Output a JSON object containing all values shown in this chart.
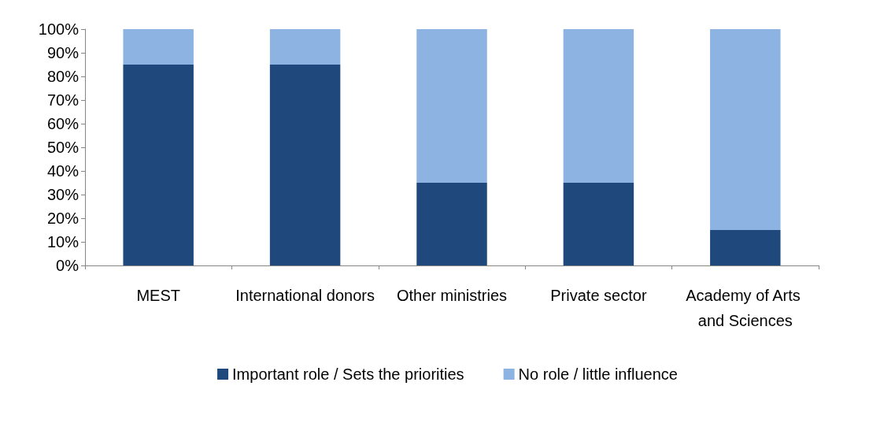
{
  "chart_data": {
    "type": "bar",
    "stacked": true,
    "categories": [
      "MEST",
      "International donors",
      "Other ministries",
      "Private sector",
      "Academy of Arts and Sciences"
    ],
    "series": [
      {
        "name": "Important role / Sets the priorities",
        "color": "#1f497d",
        "values": [
          85,
          85,
          35,
          35,
          15
        ]
      },
      {
        "name": "No role / little influence",
        "color": "#8db3e2",
        "values": [
          15,
          15,
          65,
          65,
          85
        ]
      }
    ],
    "ylim": [
      0,
      100
    ],
    "yticks": [
      {
        "value": 0,
        "label": "0%"
      },
      {
        "value": 10,
        "label": "10%"
      },
      {
        "value": 20,
        "label": "20%"
      },
      {
        "value": 30,
        "label": "30%"
      },
      {
        "value": 40,
        "label": "40%"
      },
      {
        "value": 50,
        "label": "50%"
      },
      {
        "value": 60,
        "label": "60%"
      },
      {
        "value": 70,
        "label": "70%"
      },
      {
        "value": 80,
        "label": "80%"
      },
      {
        "value": 90,
        "label": "90%"
      },
      {
        "value": 100,
        "label": "100%"
      }
    ],
    "grid": false,
    "legend": "bottom"
  }
}
